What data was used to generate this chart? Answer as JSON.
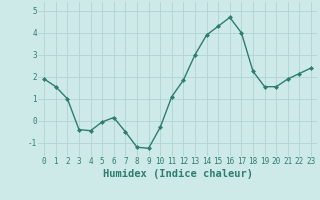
{
  "x": [
    0,
    1,
    2,
    3,
    4,
    5,
    6,
    7,
    8,
    9,
    10,
    11,
    12,
    13,
    14,
    15,
    16,
    17,
    18,
    19,
    20,
    21,
    22,
    23
  ],
  "y": [
    1.9,
    1.55,
    1.0,
    -0.4,
    -0.45,
    -0.05,
    0.15,
    -0.5,
    -1.2,
    -1.25,
    -0.3,
    1.1,
    1.85,
    3.0,
    3.9,
    4.3,
    4.7,
    4.0,
    2.25,
    1.55,
    1.55,
    1.9,
    2.15,
    2.4
  ],
  "line_color": "#2e7d6e",
  "marker": "D",
  "marker_size": 2.0,
  "linewidth": 1.0,
  "xlabel": "Humidex (Indice chaleur)",
  "xlim": [
    -0.5,
    23.5
  ],
  "ylim": [
    -1.6,
    5.4
  ],
  "yticks": [
    -1,
    0,
    1,
    2,
    3,
    4,
    5
  ],
  "xticks": [
    0,
    1,
    2,
    3,
    4,
    5,
    6,
    7,
    8,
    9,
    10,
    11,
    12,
    13,
    14,
    15,
    16,
    17,
    18,
    19,
    20,
    21,
    22,
    23
  ],
  "bg_color": "#ceeae8",
  "grid_color": "#b0d4d2",
  "text_color": "#2e7d6e",
  "xlabel_fontsize": 7.5,
  "tick_fontsize": 5.5
}
